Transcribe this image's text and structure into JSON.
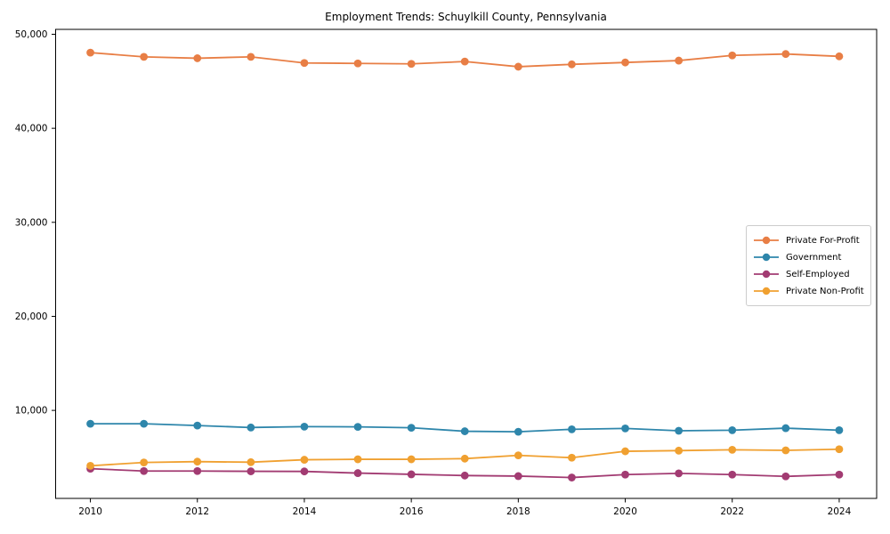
{
  "title": "Employment Trends: Schuylkill County, Pennsylvania",
  "chart_data": {
    "type": "line",
    "title": "Employment Trends: Schuylkill County, Pennsylvania",
    "xlabel": "",
    "ylabel": "",
    "x": [
      2010,
      2011,
      2012,
      2013,
      2014,
      2015,
      2016,
      2017,
      2018,
      2019,
      2020,
      2021,
      2022,
      2023,
      2024
    ],
    "series": [
      {
        "name": "Private For-Profit",
        "color": "#E87E45",
        "values": [
          48050,
          47600,
          47450,
          47600,
          46950,
          46900,
          46850,
          47100,
          46550,
          46800,
          47000,
          47200,
          47750,
          47900,
          47650
        ]
      },
      {
        "name": "Government",
        "color": "#2E86AB",
        "values": [
          8580,
          8580,
          8390,
          8180,
          8270,
          8250,
          8150,
          7780,
          7730,
          7990,
          8080,
          7830,
          7890,
          8110,
          7890
        ]
      },
      {
        "name": "Self-Employed",
        "color": "#A23B72",
        "values": [
          3800,
          3550,
          3550,
          3520,
          3510,
          3330,
          3200,
          3070,
          3010,
          2860,
          3170,
          3300,
          3170,
          2980,
          3170
        ]
      },
      {
        "name": "Private Non-Profit",
        "color": "#F0A030",
        "values": [
          4110,
          4460,
          4550,
          4490,
          4750,
          4800,
          4800,
          4870,
          5220,
          4970,
          5650,
          5720,
          5810,
          5750,
          5870
        ]
      }
    ],
    "xticks": [
      2010,
      2012,
      2014,
      2016,
      2018,
      2020,
      2022,
      2024
    ],
    "xtick_labels": [
      "2010",
      "2012",
      "2014",
      "2016",
      "2018",
      "2020",
      "2022",
      "2024"
    ],
    "yticks": [
      10000,
      20000,
      30000,
      40000,
      50000
    ],
    "ytick_labels": [
      "10,000",
      "20,000",
      "30,000",
      "40,000",
      "50,000"
    ],
    "xlim": [
      2009.35,
      2024.7
    ],
    "ylim": [
      640,
      50520
    ],
    "grid": false,
    "legend_position": "center-right",
    "legend_entries": [
      "Private For-Profit",
      "Government",
      "Self-Employed",
      "Private Non-Profit"
    ]
  }
}
